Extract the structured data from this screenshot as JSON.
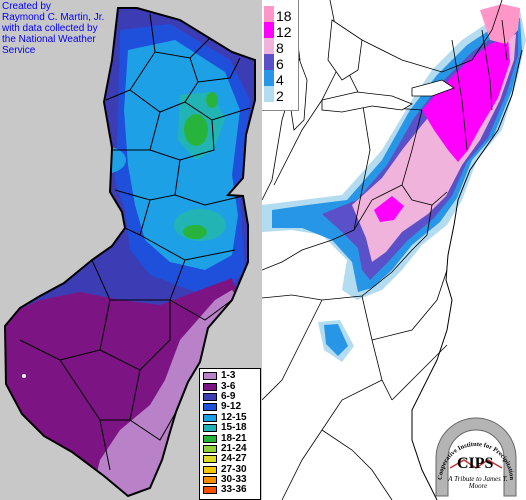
{
  "credit": {
    "text": "Created by\nRaymond C. Martin, Jr.\nwith data collected by\nthe National Weather\nService"
  },
  "nj_legend": {
    "items": [
      {
        "label": "1-3",
        "color": "#b982c8"
      },
      {
        "label": "3-6",
        "color": "#7d1483"
      },
      {
        "label": "6-9",
        "color": "#3c3cb4"
      },
      {
        "label": "9-12",
        "color": "#1e50dc"
      },
      {
        "label": "12-15",
        "color": "#1ea0e6"
      },
      {
        "label": "15-18",
        "color": "#22b4b4"
      },
      {
        "label": "18-21",
        "color": "#28b43c"
      },
      {
        "label": "21-24",
        "color": "#8cd23c"
      },
      {
        "label": "24-27",
        "color": "#dcdc28"
      },
      {
        "label": "27-30",
        "color": "#f5c800"
      },
      {
        "label": "30-33",
        "color": "#f58c00"
      },
      {
        "label": "33-36",
        "color": "#f55000"
      }
    ]
  },
  "ne_legend": {
    "items": [
      {
        "label": "18",
        "color": "#ff96c8"
      },
      {
        "label": "12",
        "color": "#ff00ff"
      },
      {
        "label": "8",
        "color": "#f0b4dc"
      },
      {
        "label": "6",
        "color": "#5a50c8"
      },
      {
        "label": "4",
        "color": "#2896e6"
      },
      {
        "label": "2",
        "color": "#b4dcf0"
      }
    ]
  },
  "logo": {
    "name": "Cooperative Institute for Precipitation Systems",
    "abbr": "CIPS",
    "tribute": "A Tribute to James T. Moore"
  }
}
